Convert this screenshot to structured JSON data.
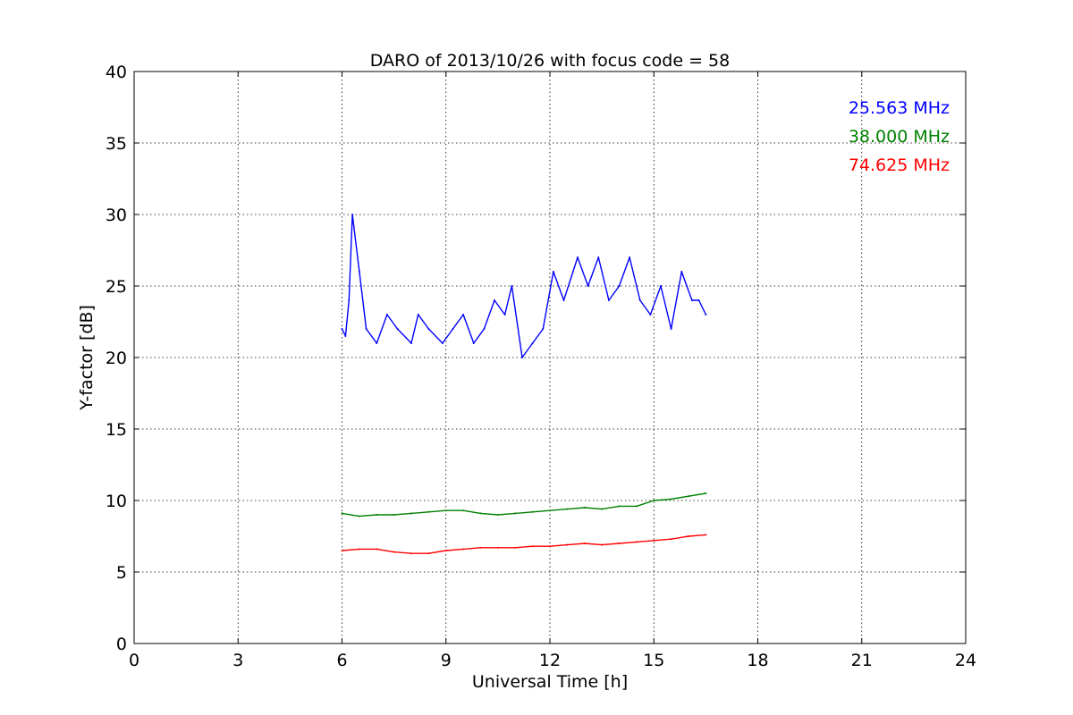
{
  "chart_data": {
    "type": "line",
    "title": "DARO of 2013/10/26 with focus code = 58",
    "xlabel": "Universal Time [h]",
    "ylabel": "Y-factor [dB]",
    "xlim": [
      0,
      24
    ],
    "ylim": [
      0,
      40
    ],
    "xticks": [
      0,
      3,
      6,
      9,
      12,
      15,
      18,
      21,
      24
    ],
    "yticks": [
      0,
      5,
      10,
      15,
      20,
      25,
      30,
      35,
      40
    ],
    "grid": true,
    "legend_position": "top-right",
    "series": [
      {
        "name": "25.563 MHz",
        "color": "#0000ff",
        "x": [
          6.0,
          6.1,
          6.2,
          6.3,
          6.5,
          6.7,
          7.0,
          7.3,
          7.6,
          8.0,
          8.2,
          8.5,
          8.9,
          9.2,
          9.5,
          9.8,
          10.1,
          10.4,
          10.7,
          10.9,
          11.2,
          11.5,
          11.8,
          12.1,
          12.4,
          12.8,
          13.1,
          13.4,
          13.7,
          14.0,
          14.3,
          14.6,
          14.9,
          15.2,
          15.5,
          15.8,
          16.1,
          16.3,
          16.5
        ],
        "y": [
          22,
          21.5,
          24,
          30,
          26,
          22,
          21,
          23,
          22,
          21,
          23,
          22,
          21,
          22,
          23,
          21,
          22,
          24,
          23,
          25,
          20,
          21,
          22,
          26,
          24,
          27,
          25,
          27,
          24,
          25,
          27,
          24,
          23,
          25,
          22,
          26,
          24,
          24,
          23
        ]
      },
      {
        "name": "38.000 MHz",
        "color": "#008000",
        "x": [
          6.0,
          6.5,
          7.0,
          7.5,
          8.0,
          8.5,
          9.0,
          9.5,
          10.0,
          10.5,
          11.0,
          11.5,
          12.0,
          12.5,
          13.0,
          13.5,
          14.0,
          14.5,
          15.0,
          15.5,
          16.0,
          16.5
        ],
        "y": [
          9.1,
          8.9,
          9.0,
          9.0,
          9.1,
          9.2,
          9.3,
          9.3,
          9.1,
          9.0,
          9.1,
          9.2,
          9.3,
          9.4,
          9.5,
          9.4,
          9.6,
          9.6,
          10.0,
          10.1,
          10.3,
          10.5
        ]
      },
      {
        "name": "74.625 MHz",
        "color": "#ff0000",
        "x": [
          6.0,
          6.5,
          7.0,
          7.5,
          8.0,
          8.5,
          9.0,
          9.5,
          10.0,
          10.5,
          11.0,
          11.5,
          12.0,
          12.5,
          13.0,
          13.5,
          14.0,
          14.5,
          15.0,
          15.5,
          16.0,
          16.5
        ],
        "y": [
          6.5,
          6.6,
          6.6,
          6.4,
          6.3,
          6.3,
          6.5,
          6.6,
          6.7,
          6.7,
          6.7,
          6.8,
          6.8,
          6.9,
          7.0,
          6.9,
          7.0,
          7.1,
          7.2,
          7.3,
          7.5,
          7.6
        ]
      }
    ]
  }
}
